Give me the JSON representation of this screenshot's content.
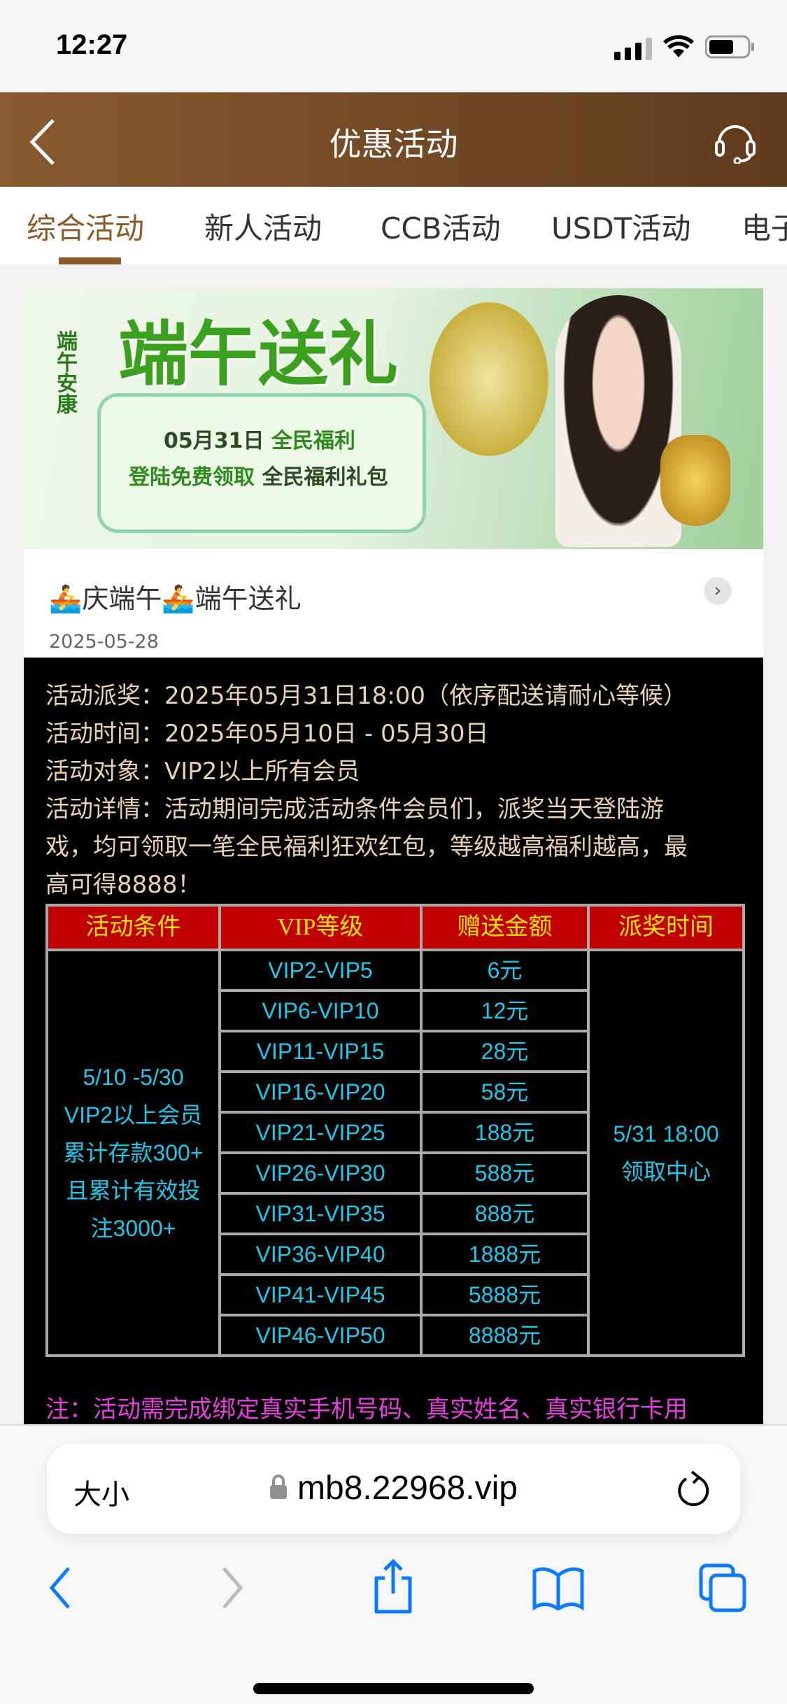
{
  "status_bar": {
    "time": "12:27"
  },
  "nav": {
    "title": "优惠活动",
    "back_icon": "chevron-left-icon",
    "support_icon": "headset-icon"
  },
  "tabs": [
    {
      "label": "综合活动",
      "active": true
    },
    {
      "label": "新人活动"
    },
    {
      "label": "CCB活动"
    },
    {
      "label": "USDT活动"
    },
    {
      "label": "电子"
    }
  ],
  "banner": {
    "headline": "端午送礼",
    "side_text": "端午安康",
    "line1_date": "05月31日",
    "line1_text": "全民福利",
    "line2_a": "登陆免费领取",
    "line2_b": "全民福利礼包"
  },
  "post": {
    "title": "🚣庆端午🚣端午送礼",
    "date": "2025-05-28"
  },
  "content": {
    "lines": [
      "活动派奖：2025年05月31日18:00（依序配送请耐心等候）",
      "活动时间：2025年05月10日 - 05月30日",
      "活动对象：VIP2以上所有会员",
      "活动详情：活动期间完成活动条件会员们，派奖当天登陆游",
      "戏，均可领取一笔全民福利狂欢红包，等级越高福利越高，最",
      "高可得8888！"
    ],
    "table": {
      "headers": [
        "活动条件",
        "VIP等级",
        "赠送金额",
        "派奖时间"
      ],
      "condition": [
        "5/10 -5/30",
        "VIP2以上会员",
        "累计存款300+",
        "且累计有效投",
        "注3000+"
      ],
      "time": [
        "5/31 18:00",
        "领取中心"
      ],
      "rows": [
        [
          "VIP2-VIP5",
          "6元"
        ],
        [
          "VIP6-VIP10",
          "12元"
        ],
        [
          "VIP11-VIP15",
          "28元"
        ],
        [
          "VIP16-VIP20",
          "58元"
        ],
        [
          "VIP21-VIP25",
          "188元"
        ],
        [
          "VIP26-VIP30",
          "588元"
        ],
        [
          "VIP31-VIP35",
          "888元"
        ],
        [
          "VIP36-VIP40",
          "1888元"
        ],
        [
          "VIP41-VIP45",
          "5888元"
        ],
        [
          "VIP46-VIP50",
          "8888元"
        ]
      ]
    },
    "note": "注：活动需完成绑定真实手机号码、真实姓名、真实银行卡用"
  },
  "browser": {
    "text_size": "大小",
    "url": "mb8.22968.vip"
  },
  "colors": {
    "accent": "#8b5a2b",
    "table_header": "#c00000",
    "header_text": "#ffe600",
    "cell_text": "#1ec8ea",
    "note": "#e83ee0",
    "ios_blue": "#0a7aff"
  }
}
